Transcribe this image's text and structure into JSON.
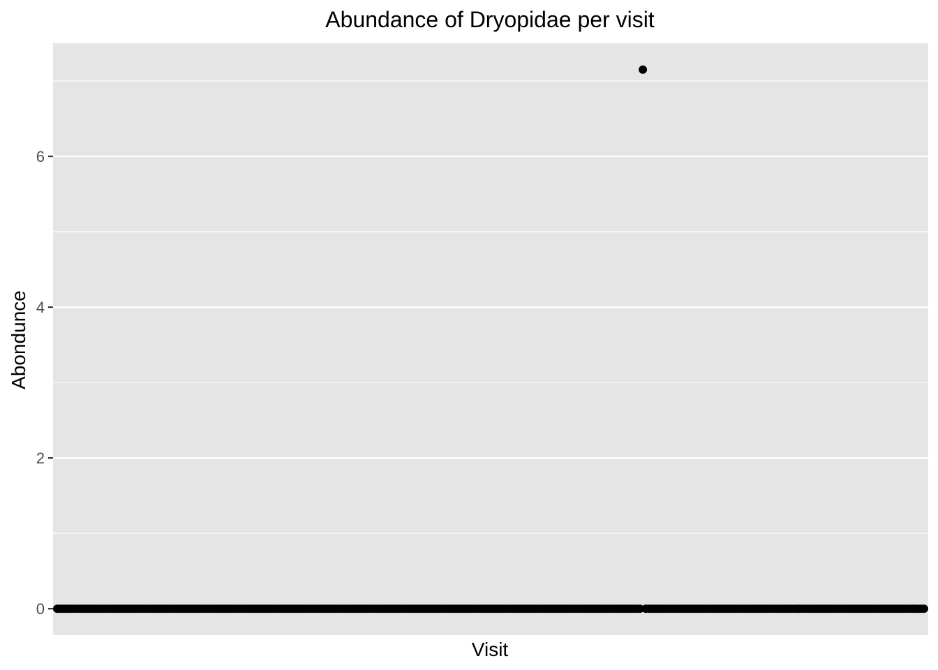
{
  "chart_data": {
    "type": "scatter",
    "title": "Abundance of Dryopidae per visit",
    "xlabel": "Visit",
    "ylabel": "Abondunce",
    "x_ticks_shown": false,
    "ylim": [
      -0.35,
      7.5
    ],
    "yticks": [
      0,
      2,
      4,
      6
    ],
    "grid": true,
    "legend": "none",
    "point_color": "#000000",
    "panel_background": "#e5e5e5",
    "grid_color": "#ffffff",
    "series": [
      {
        "x_index": [
          1,
          2,
          3,
          4,
          5,
          6,
          7,
          8,
          9,
          10,
          11,
          12,
          13,
          14,
          15,
          16,
          17,
          18,
          19,
          20,
          21,
          22,
          23,
          24,
          25,
          26,
          27,
          28,
          29,
          30,
          31,
          32,
          33,
          34,
          35,
          36,
          37,
          38,
          39,
          40,
          41,
          42,
          43,
          44,
          45,
          46,
          47,
          48,
          49,
          50,
          51,
          52,
          53,
          54,
          55,
          56,
          57,
          58,
          59,
          60,
          61,
          62,
          63,
          64,
          65,
          66,
          67,
          68,
          69,
          70,
          71,
          72,
          73,
          74,
          75,
          76,
          77,
          78,
          79,
          80,
          81,
          82,
          83,
          84,
          85,
          86,
          87,
          88,
          89,
          90,
          91,
          92,
          93,
          94,
          95,
          96,
          97,
          98,
          99,
          100,
          101,
          102,
          103,
          104,
          105,
          106,
          107,
          108,
          109,
          110,
          111,
          112,
          113,
          114,
          115,
          116,
          117,
          118,
          119,
          120,
          121,
          122,
          123,
          124,
          125,
          126,
          127,
          128,
          129,
          130,
          131,
          132,
          133,
          134,
          135,
          136,
          137,
          138,
          139,
          140,
          141,
          142,
          143,
          144,
          145,
          146,
          147,
          148,
          149,
          150,
          151,
          152,
          153,
          154,
          155,
          156,
          157,
          158,
          159,
          160,
          161,
          162,
          163,
          164,
          165,
          166,
          167,
          168,
          169,
          170,
          171,
          172,
          173,
          174,
          175,
          176,
          177,
          178,
          179,
          180,
          181,
          182,
          183,
          184,
          185,
          186,
          187,
          188,
          189,
          190,
          191,
          192,
          193,
          194,
          195,
          196,
          197,
          198,
          199,
          200,
          201,
          202,
          203,
          204,
          205,
          206,
          207,
          208,
          209,
          210,
          211,
          212,
          213,
          214,
          215,
          216,
          217,
          218,
          219,
          220,
          221,
          222,
          223,
          224,
          225,
          226,
          227,
          228,
          229,
          230,
          231,
          232,
          233,
          234,
          235,
          236,
          237,
          238,
          239,
          240,
          241,
          242,
          243,
          244,
          245,
          246,
          247,
          248,
          249,
          250,
          251,
          252,
          253,
          254,
          255,
          256,
          257,
          258,
          259,
          260,
          261,
          262,
          263,
          264,
          265,
          266,
          267,
          268,
          269,
          270,
          271,
          272,
          273,
          274,
          275,
          276,
          277,
          278,
          279,
          280,
          281,
          282,
          283,
          284,
          285,
          286,
          287,
          288,
          289,
          290,
          291,
          292,
          293,
          294,
          295,
          296,
          297,
          298,
          299,
          300
        ],
        "values": [
          0,
          0,
          0,
          0,
          0,
          0,
          0,
          0,
          0,
          0,
          0,
          0,
          0,
          0,
          0,
          0,
          0,
          0,
          0,
          0,
          0,
          0,
          0,
          0,
          0,
          0,
          0,
          0,
          0,
          0,
          0,
          0,
          0,
          0,
          0,
          0,
          0,
          0,
          0,
          0,
          0,
          0,
          0,
          0,
          0,
          0,
          0,
          0,
          0,
          0,
          0,
          0,
          0,
          0,
          0,
          0,
          0,
          0,
          0,
          0,
          0,
          0,
          0,
          0,
          0,
          0,
          0,
          0,
          0,
          0,
          0,
          0,
          0,
          0,
          0,
          0,
          0,
          0,
          0,
          0,
          0,
          0,
          0,
          0,
          0,
          0,
          0,
          0,
          0,
          0,
          0,
          0,
          0,
          0,
          0,
          0,
          0,
          0,
          0,
          0,
          0,
          0,
          0,
          0,
          0,
          0,
          0,
          0,
          0,
          0,
          0,
          0,
          0,
          0,
          0,
          0,
          0,
          0,
          0,
          0,
          0,
          0,
          0,
          0,
          0,
          0,
          0,
          0,
          0,
          0,
          0,
          0,
          0,
          0,
          0,
          0,
          0,
          0,
          0,
          0,
          0,
          0,
          0,
          0,
          0,
          0,
          0,
          0,
          0,
          0,
          0,
          0,
          0,
          0,
          0,
          0,
          0,
          0,
          0,
          0,
          0,
          0,
          0,
          0,
          0,
          0,
          0,
          0,
          0,
          0,
          0,
          0,
          0,
          0,
          0,
          0,
          0,
          0,
          0,
          0,
          0,
          0,
          0,
          0,
          0,
          0,
          0,
          0,
          0,
          0,
          0,
          0,
          0,
          0,
          0,
          0,
          0,
          0,
          0,
          0,
          0,
          0,
          7.15,
          0,
          0,
          0,
          0,
          0,
          0,
          0,
          0,
          0,
          0,
          0,
          0,
          0,
          0,
          0,
          0,
          0,
          0,
          0,
          0,
          0,
          0,
          0,
          0,
          0,
          0,
          0,
          0,
          0,
          0,
          0,
          0,
          0,
          0,
          0,
          0,
          0,
          0,
          0,
          0,
          0,
          0,
          0,
          0,
          0,
          0,
          0,
          0,
          0,
          0,
          0,
          0,
          0,
          0,
          0,
          0,
          0,
          0,
          0,
          0,
          0,
          0,
          0,
          0,
          0,
          0,
          0,
          0,
          0,
          0,
          0,
          0,
          0,
          0,
          0,
          0,
          0,
          0,
          0,
          0,
          0,
          0,
          0,
          0,
          0,
          0,
          0,
          0,
          0,
          0,
          0,
          0,
          0,
          0,
          0,
          0,
          0
        ]
      }
    ]
  }
}
